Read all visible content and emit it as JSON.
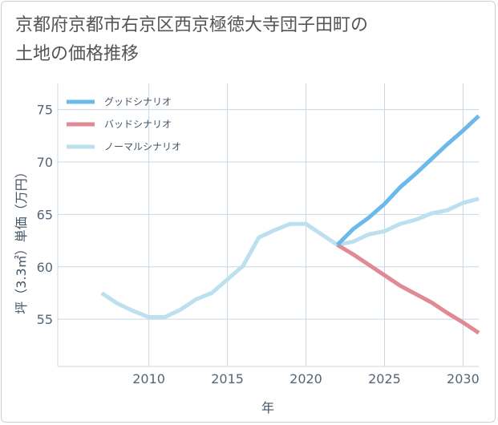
{
  "title_lines": [
    "京都府京都市右京区西京極徳大寺団子田町の",
    "土地の価格推移"
  ],
  "colors": {
    "good": "#6bb8ea",
    "bad": "#df8a95",
    "normal": "#bde0ee",
    "grid": "#c9d7e3",
    "plot_bg": "#ffffff"
  },
  "chart_data": {
    "type": "line",
    "title": "京都府京都市右京区西京極徳大寺団子田町の土地の価格推移",
    "xlabel": "年",
    "ylabel": "坪（3.3㎡）単価（万円）",
    "xlim": [
      2004.2,
      2031
    ],
    "ylim": [
      50.5,
      77.5
    ],
    "xticks": [
      2010,
      2015,
      2020,
      2025,
      2030
    ],
    "yticks": [
      55,
      60,
      65,
      70,
      75
    ],
    "legend_position": "top-left",
    "series": [
      {
        "key": "good",
        "name": "グッドシナリオ",
        "x": [
          2022,
          2023,
          2024,
          2025,
          2026,
          2027,
          2028,
          2029,
          2030,
          2031
        ],
        "y": [
          62.1,
          63.6,
          64.7,
          66.0,
          67.6,
          68.9,
          70.3,
          71.7,
          73.0,
          74.4
        ]
      },
      {
        "key": "bad",
        "name": "バッドシナリオ",
        "x": [
          2022,
          2023,
          2024,
          2025,
          2026,
          2027,
          2028,
          2029,
          2030,
          2031
        ],
        "y": [
          62.1,
          61.2,
          60.2,
          59.2,
          58.2,
          57.4,
          56.6,
          55.6,
          54.7,
          53.7
        ]
      },
      {
        "key": "normal",
        "name": "ノーマルシナリオ",
        "x": [
          2007,
          2008,
          2009,
          2010,
          2011,
          2012,
          2013,
          2014,
          2015,
          2016,
          2017,
          2018,
          2019,
          2020,
          2021,
          2022,
          2023,
          2024,
          2025,
          2026,
          2027,
          2028,
          2029,
          2030,
          2031
        ],
        "y": [
          57.5,
          56.5,
          55.8,
          55.2,
          55.2,
          55.9,
          56.9,
          57.5,
          58.8,
          60.1,
          62.8,
          63.5,
          64.1,
          64.1,
          63.1,
          62.1,
          62.4,
          63.1,
          63.4,
          64.1,
          64.5,
          65.1,
          65.4,
          66.1,
          66.5
        ]
      }
    ]
  }
}
